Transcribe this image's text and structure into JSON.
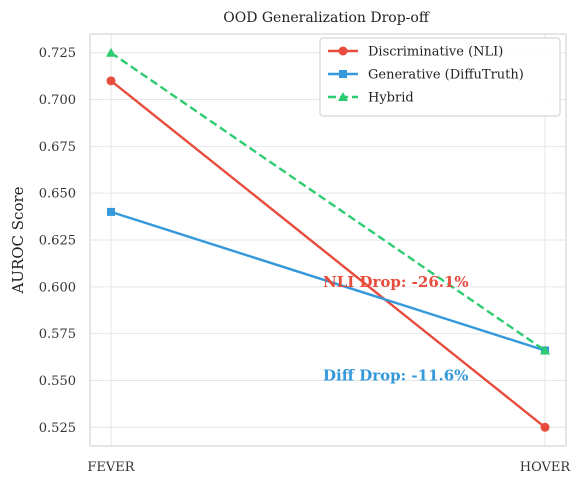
{
  "chart_data": {
    "type": "line",
    "title": "OOD Generalization Drop-off",
    "xlabel": "",
    "ylabel": "AUROC Score",
    "categories": [
      "FEVER",
      "HOVER"
    ],
    "ylim": [
      0.515,
      0.735
    ],
    "yticks": [
      0.525,
      0.55,
      0.575,
      0.6,
      0.625,
      0.65,
      0.675,
      0.7,
      0.725
    ],
    "ytick_labels": [
      "0.525",
      "0.550",
      "0.575",
      "0.600",
      "0.625",
      "0.650",
      "0.675",
      "0.700",
      "0.725"
    ],
    "grid": true,
    "legend_position": "top-right",
    "series": [
      {
        "name": "Discriminative (NLI)",
        "values": [
          0.71,
          0.525
        ],
        "color": "#e74c3c",
        "marker": "circle",
        "dash": "solid"
      },
      {
        "name": "Generative (DiffuTruth)",
        "values": [
          0.64,
          0.566
        ],
        "color": "#3498db",
        "marker": "square",
        "dash": "solid"
      },
      {
        "name": "Hybrid",
        "values": [
          0.725,
          0.566
        ],
        "color": "#2ecc71",
        "marker": "triangle",
        "dash": "dashed"
      }
    ],
    "annotations": [
      {
        "text": "NLI Drop: -26.1%",
        "color": "#e74c3c",
        "x": 0.5,
        "y": 0.6
      },
      {
        "text": "Diff Drop: -11.6%",
        "color": "#3498db",
        "x": 0.5,
        "y": 0.55
      }
    ]
  }
}
